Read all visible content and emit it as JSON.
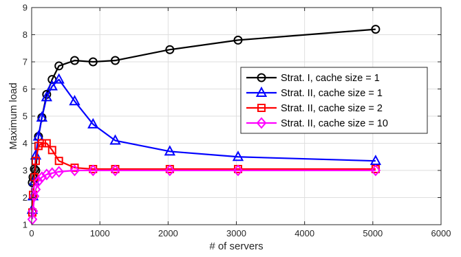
{
  "chart_data": {
    "type": "line",
    "title": "",
    "xlabel": "# of servers",
    "ylabel": "Maximum load",
    "xlim": [
      0,
      6000
    ],
    "ylim": [
      1,
      9
    ],
    "xticks": [
      0,
      1000,
      2000,
      3000,
      4000,
      5000,
      6000
    ],
    "yticks": [
      1,
      2,
      3,
      4,
      5,
      6,
      7,
      8,
      9
    ],
    "xtick_labels": [
      "0",
      "1000",
      "2000",
      "3000",
      "4000",
      "5000",
      "6000"
    ],
    "ytick_labels": [
      "1",
      "2",
      "3",
      "4",
      "5",
      "6",
      "7",
      "8",
      "9"
    ],
    "grid": true,
    "legend_position": "right",
    "series": [
      {
        "name": "Strat. I, cache size = 1",
        "color": "#000000",
        "marker": "circle",
        "x": [
          10,
          20,
          40,
          60,
          100,
          150,
          220,
          300,
          400,
          630,
          900,
          1225,
          2025,
          3025,
          5041
        ],
        "y": [
          2.55,
          2.75,
          3.05,
          3.0,
          4.25,
          4.95,
          5.8,
          6.35,
          6.85,
          7.05,
          7.0,
          7.05,
          7.45,
          7.8,
          8.2
        ]
      },
      {
        "name": "Strat. II, cache size = 1",
        "color": "#0000ff",
        "marker": "triangle",
        "x": [
          10,
          20,
          40,
          60,
          100,
          150,
          220,
          300,
          400,
          630,
          900,
          1225,
          2025,
          3025,
          5041
        ],
        "y": [
          1.55,
          2.05,
          2.6,
          3.55,
          4.25,
          4.95,
          5.7,
          6.1,
          6.35,
          5.55,
          4.7,
          4.1,
          3.7,
          3.5,
          3.35
        ]
      },
      {
        "name": "Strat. II, cache size = 2",
        "color": "#ff0000",
        "marker": "square",
        "x": [
          10,
          20,
          40,
          60,
          100,
          150,
          220,
          300,
          400,
          630,
          900,
          1225,
          2025,
          3025,
          5041
        ],
        "y": [
          1.45,
          2.1,
          2.75,
          3.35,
          3.9,
          4.0,
          4.0,
          3.75,
          3.35,
          3.1,
          3.05,
          3.05,
          3.05,
          3.05,
          3.05
        ]
      },
      {
        "name": "Strat. II, cache size = 10",
        "color": "#ff00ff",
        "marker": "diamond",
        "x": [
          10,
          20,
          40,
          60,
          100,
          150,
          220,
          300,
          400,
          630,
          900,
          1225,
          2025,
          3025,
          5041
        ],
        "y": [
          1.2,
          1.5,
          2.05,
          2.3,
          2.6,
          2.75,
          2.85,
          2.9,
          2.95,
          3.0,
          3.0,
          3.0,
          3.0,
          3.0,
          3.0
        ]
      }
    ]
  }
}
